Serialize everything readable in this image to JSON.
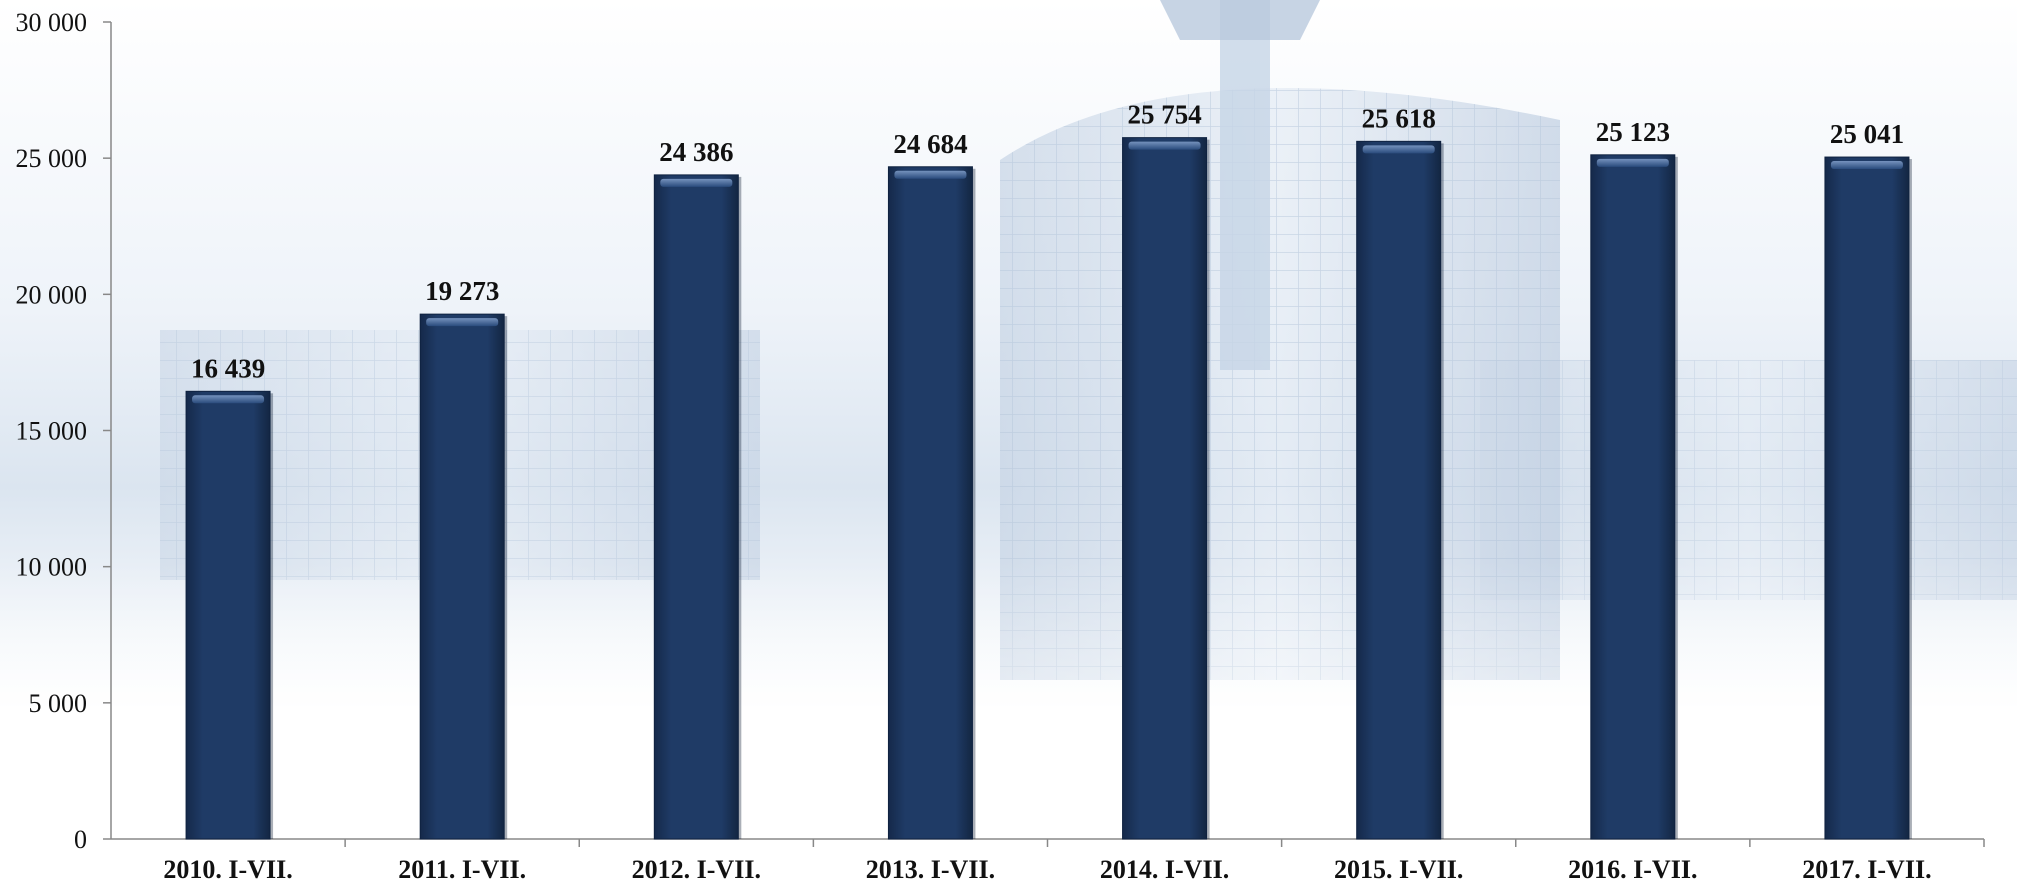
{
  "chart_data": {
    "type": "bar",
    "categories": [
      "2010. I-VII.",
      "2011. I-VII.",
      "2012. I-VII.",
      "2013. I-VII.",
      "2014. I-VII.",
      "2015. I-VII.",
      "2016. I-VII.",
      "2017. I-VII."
    ],
    "values": [
      16439,
      19273,
      24386,
      24684,
      25754,
      25618,
      25123,
      25041
    ],
    "value_labels": [
      "16 439",
      "19 273",
      "24 386",
      "24 684",
      "25 754",
      "25 618",
      "25 123",
      "25 041"
    ],
    "y_ticks": [
      0,
      5000,
      10000,
      15000,
      20000,
      25000,
      30000
    ],
    "y_tick_labels": [
      "0",
      "5 000",
      "10 000",
      "15 000",
      "20 000",
      "25 000",
      "30 000"
    ],
    "ylim": [
      0,
      30000
    ],
    "grid": false,
    "legend": "none",
    "bar_color": "#1f3b66",
    "background": "faded photo of a modern glass building"
  }
}
